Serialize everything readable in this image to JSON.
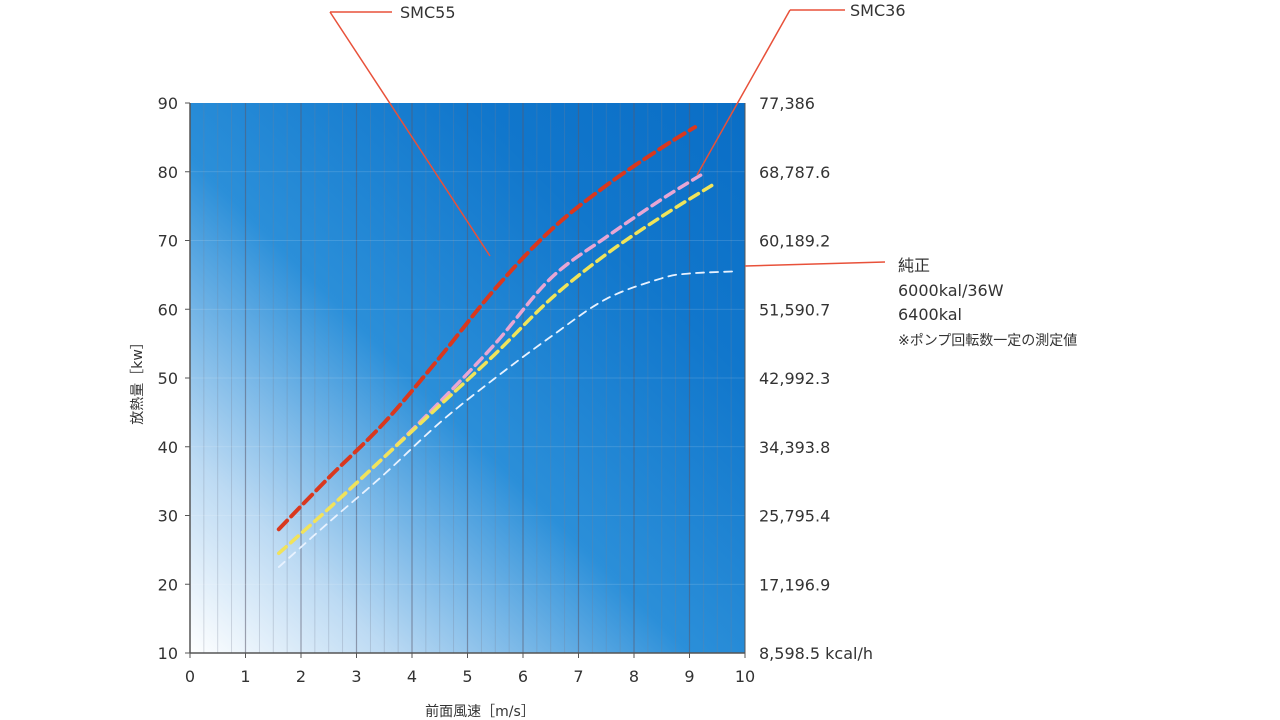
{
  "chart_data": {
    "type": "line",
    "title": "",
    "xlabel": "前面風速［m/s］",
    "ylabel": "放熱量［kw］",
    "xlim": [
      0,
      10
    ],
    "ylim": [
      10,
      90
    ],
    "x_ticks": [
      "0",
      "1",
      "2",
      "3",
      "4",
      "5",
      "6",
      "7",
      "8",
      "9",
      "10"
    ],
    "y_ticks": [
      "10",
      "20",
      "30",
      "40",
      "50",
      "60",
      "70",
      "80",
      "90"
    ],
    "y2_ticks": [
      "8,598.5 kcal/h",
      "17,196.9",
      "25,795.4",
      "34,393.8",
      "42,992.3",
      "51,590.7",
      "60,189.2",
      "68,787.6",
      "77,386"
    ],
    "grid": true,
    "series": [
      {
        "name": "SMC55",
        "color": "#d9381e",
        "x": [
          1.6,
          2.5,
          3.5,
          4.5,
          5.5,
          6.5,
          7.5,
          8.5,
          9.1
        ],
        "y": [
          28,
          35.5,
          43.5,
          53,
          63,
          71.5,
          78,
          83.5,
          86.5
        ]
      },
      {
        "name": "SMC36",
        "color": "#e8a6d4",
        "x": [
          1.6,
          2.5,
          3.5,
          4.5,
          5.5,
          6.5,
          7.5,
          8.5,
          9.2
        ],
        "y": [
          24.5,
          31,
          38.5,
          46.5,
          55,
          64.5,
          70.5,
          76,
          79.5
        ]
      },
      {
        "name": "",
        "color": "#f0e45a",
        "x": [
          1.6,
          2.5,
          3.5,
          4.5,
          5.5,
          6.5,
          7.5,
          8.5,
          9.4
        ],
        "y": [
          24.5,
          31,
          38.5,
          46,
          53.5,
          61.5,
          68,
          73.5,
          78
        ]
      },
      {
        "name": "純正",
        "color": "#e8f2ff",
        "x": [
          1.6,
          2.5,
          3.5,
          4.5,
          5.5,
          6.5,
          7.5,
          8.5,
          9.0,
          9.8
        ],
        "y": [
          22.5,
          29,
          36,
          43.5,
          50,
          56,
          61.5,
          64.5,
          65.2,
          65.5
        ]
      }
    ],
    "annotations": [
      {
        "lines": [
          "SMC55"
        ]
      },
      {
        "lines": [
          "SMC36"
        ]
      },
      {
        "lines": [
          "純正",
          "6000kal/36W",
          "6400kal",
          "※ポンプ回転数一定の測定値"
        ]
      }
    ]
  }
}
